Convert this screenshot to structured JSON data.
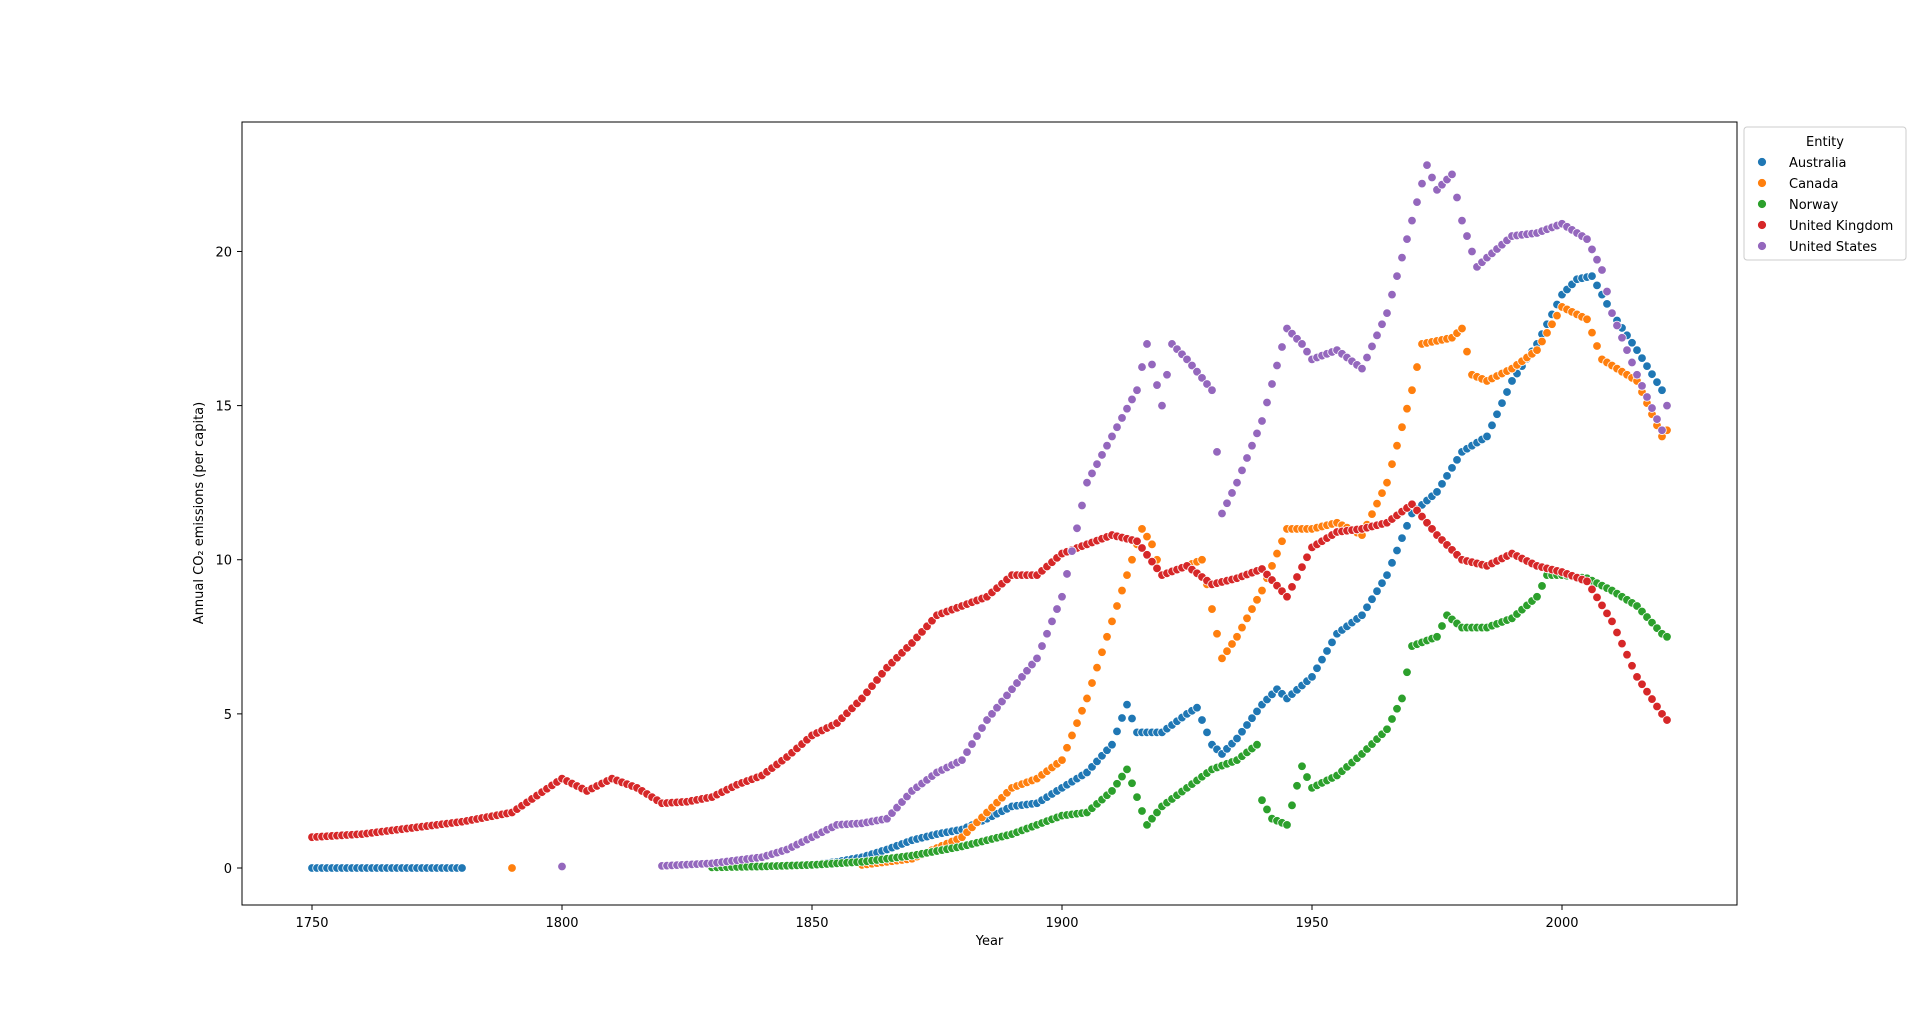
{
  "chart_data": {
    "type": "scatter",
    "title": "",
    "xlabel": "Year",
    "ylabel": "Annual CO₂ emissions (per capita)",
    "xlim": [
      1736,
      2035
    ],
    "ylim": [
      -1.2,
      24.2
    ],
    "x_ticks": [
      1750,
      1800,
      1850,
      1900,
      1950,
      2000
    ],
    "y_ticks": [
      0,
      5,
      10,
      15,
      20
    ],
    "grid": false,
    "legend": {
      "title": "Entity",
      "placement": "top-right-outside"
    },
    "series": [
      {
        "name": "Australia",
        "color": "#1f77b4",
        "anchors": [
          [
            1750,
            0
          ],
          [
            1760,
            0
          ],
          [
            1770,
            0
          ],
          [
            1780,
            0
          ],
          [
            1830,
            0.02
          ],
          [
            1840,
            0.05
          ],
          [
            1850,
            0.1
          ],
          [
            1855,
            0.2
          ],
          [
            1860,
            0.35
          ],
          [
            1865,
            0.6
          ],
          [
            1870,
            0.9
          ],
          [
            1875,
            1.1
          ],
          [
            1880,
            1.25
          ],
          [
            1885,
            1.6
          ],
          [
            1890,
            2.0
          ],
          [
            1895,
            2.1
          ],
          [
            1900,
            2.6
          ],
          [
            1905,
            3.1
          ],
          [
            1910,
            4.0
          ],
          [
            1913,
            5.3
          ],
          [
            1915,
            4.4
          ],
          [
            1920,
            4.4
          ],
          [
            1925,
            5.0
          ],
          [
            1927,
            5.2
          ],
          [
            1930,
            4.0
          ],
          [
            1932,
            3.7
          ],
          [
            1935,
            4.2
          ],
          [
            1940,
            5.3
          ],
          [
            1943,
            5.8
          ],
          [
            1945,
            5.5
          ],
          [
            1950,
            6.2
          ],
          [
            1955,
            7.6
          ],
          [
            1960,
            8.2
          ],
          [
            1965,
            9.5
          ],
          [
            1970,
            11.5
          ],
          [
            1975,
            12.2
          ],
          [
            1980,
            13.5
          ],
          [
            1985,
            14.0
          ],
          [
            1990,
            15.8
          ],
          [
            1995,
            17.0
          ],
          [
            2000,
            18.6
          ],
          [
            2003,
            19.1
          ],
          [
            2006,
            19.2
          ],
          [
            2010,
            18.0
          ],
          [
            2015,
            16.8
          ],
          [
            2020,
            15.5
          ]
        ]
      },
      {
        "name": "Canada",
        "color": "#ff7f0e",
        "anchors": [
          [
            1790,
            0
          ],
          [
            1830,
            0
          ],
          [
            1860,
            0.1
          ],
          [
            1870,
            0.3
          ],
          [
            1880,
            1.0
          ],
          [
            1885,
            1.8
          ],
          [
            1890,
            2.6
          ],
          [
            1895,
            2.9
          ],
          [
            1900,
            3.5
          ],
          [
            1905,
            5.5
          ],
          [
            1910,
            8.0
          ],
          [
            1913,
            9.5
          ],
          [
            1916,
            11.0
          ],
          [
            1918,
            10.5
          ],
          [
            1920,
            9.5
          ],
          [
            1925,
            9.8
          ],
          [
            1928,
            10.0
          ],
          [
            1932,
            6.8
          ],
          [
            1935,
            7.5
          ],
          [
            1940,
            9.0
          ],
          [
            1945,
            11.0
          ],
          [
            1950,
            11.0
          ],
          [
            1955,
            11.2
          ],
          [
            1960,
            10.8
          ],
          [
            1965,
            12.5
          ],
          [
            1970,
            15.5
          ],
          [
            1972,
            17.0
          ],
          [
            1978,
            17.2
          ],
          [
            1980,
            17.5
          ],
          [
            1982,
            16.0
          ],
          [
            1985,
            15.8
          ],
          [
            1990,
            16.2
          ],
          [
            1995,
            16.8
          ],
          [
            2000,
            18.2
          ],
          [
            2005,
            17.8
          ],
          [
            2008,
            16.5
          ],
          [
            2015,
            15.8
          ],
          [
            2020,
            14.0
          ],
          [
            2021,
            14.2
          ]
        ]
      },
      {
        "name": "Norway",
        "color": "#2ca02c",
        "anchors": [
          [
            1830,
            0.02
          ],
          [
            1840,
            0.05
          ],
          [
            1850,
            0.1
          ],
          [
            1860,
            0.2
          ],
          [
            1870,
            0.4
          ],
          [
            1880,
            0.7
          ],
          [
            1890,
            1.1
          ],
          [
            1900,
            1.7
          ],
          [
            1905,
            1.8
          ],
          [
            1910,
            2.5
          ],
          [
            1913,
            3.2
          ],
          [
            1917,
            1.4
          ],
          [
            1920,
            2.0
          ],
          [
            1925,
            2.6
          ],
          [
            1930,
            3.2
          ],
          [
            1935,
            3.5
          ],
          [
            1939,
            4.0
          ],
          [
            1940,
            2.2
          ],
          [
            1942,
            1.6
          ],
          [
            1945,
            1.4
          ],
          [
            1948,
            3.3
          ],
          [
            1950,
            2.6
          ],
          [
            1955,
            3.0
          ],
          [
            1960,
            3.7
          ],
          [
            1965,
            4.5
          ],
          [
            1968,
            5.5
          ],
          [
            1970,
            7.2
          ],
          [
            1975,
            7.5
          ],
          [
            1977,
            8.2
          ],
          [
            1980,
            7.8
          ],
          [
            1985,
            7.8
          ],
          [
            1990,
            8.1
          ],
          [
            1995,
            8.8
          ],
          [
            1997,
            9.5
          ],
          [
            2000,
            9.5
          ],
          [
            2005,
            9.4
          ],
          [
            2010,
            9.0
          ],
          [
            2015,
            8.5
          ],
          [
            2020,
            7.6
          ],
          [
            2021,
            7.5
          ]
        ]
      },
      {
        "name": "United Kingdom",
        "color": "#d62728",
        "anchors": [
          [
            1750,
            1.0
          ],
          [
            1760,
            1.1
          ],
          [
            1770,
            1.3
          ],
          [
            1780,
            1.5
          ],
          [
            1790,
            1.8
          ],
          [
            1800,
            2.9
          ],
          [
            1805,
            2.5
          ],
          [
            1810,
            2.9
          ],
          [
            1815,
            2.6
          ],
          [
            1820,
            2.1
          ],
          [
            1825,
            2.15
          ],
          [
            1830,
            2.3
          ],
          [
            1835,
            2.7
          ],
          [
            1840,
            3.0
          ],
          [
            1845,
            3.6
          ],
          [
            1850,
            4.3
          ],
          [
            1855,
            4.7
          ],
          [
            1860,
            5.5
          ],
          [
            1865,
            6.5
          ],
          [
            1870,
            7.3
          ],
          [
            1875,
            8.2
          ],
          [
            1880,
            8.5
          ],
          [
            1885,
            8.8
          ],
          [
            1890,
            9.5
          ],
          [
            1895,
            9.5
          ],
          [
            1900,
            10.2
          ],
          [
            1905,
            10.5
          ],
          [
            1910,
            10.8
          ],
          [
            1915,
            10.6
          ],
          [
            1920,
            9.5
          ],
          [
            1925,
            9.8
          ],
          [
            1930,
            9.2
          ],
          [
            1935,
            9.4
          ],
          [
            1940,
            9.7
          ],
          [
            1945,
            8.8
          ],
          [
            1950,
            10.4
          ],
          [
            1955,
            10.9
          ],
          [
            1960,
            11.0
          ],
          [
            1965,
            11.2
          ],
          [
            1970,
            11.8
          ],
          [
            1975,
            10.8
          ],
          [
            1980,
            10.0
          ],
          [
            1985,
            9.8
          ],
          [
            1990,
            10.2
          ],
          [
            1995,
            9.8
          ],
          [
            2000,
            9.6
          ],
          [
            2005,
            9.3
          ],
          [
            2010,
            8.0
          ],
          [
            2015,
            6.2
          ],
          [
            2020,
            5.0
          ],
          [
            2021,
            4.8
          ]
        ]
      },
      {
        "name": "United States",
        "color": "#9467bd",
        "anchors": [
          [
            1800,
            0.05
          ],
          [
            1820,
            0.07
          ],
          [
            1830,
            0.15
          ],
          [
            1840,
            0.35
          ],
          [
            1845,
            0.6
          ],
          [
            1850,
            1.0
          ],
          [
            1855,
            1.4
          ],
          [
            1860,
            1.45
          ],
          [
            1865,
            1.6
          ],
          [
            1870,
            2.5
          ],
          [
            1875,
            3.1
          ],
          [
            1880,
            3.5
          ],
          [
            1885,
            4.8
          ],
          [
            1890,
            5.8
          ],
          [
            1895,
            6.8
          ],
          [
            1900,
            8.8
          ],
          [
            1905,
            12.5
          ],
          [
            1910,
            14.0
          ],
          [
            1915,
            15.5
          ],
          [
            1917,
            17.0
          ],
          [
            1920,
            15.0
          ],
          [
            1922,
            17.0
          ],
          [
            1925,
            16.5
          ],
          [
            1930,
            15.5
          ],
          [
            1932,
            11.5
          ],
          [
            1935,
            12.5
          ],
          [
            1940,
            14.5
          ],
          [
            1945,
            17.5
          ],
          [
            1948,
            17.0
          ],
          [
            1950,
            16.5
          ],
          [
            1955,
            16.8
          ],
          [
            1960,
            16.2
          ],
          [
            1965,
            18.0
          ],
          [
            1970,
            21.0
          ],
          [
            1973,
            22.8
          ],
          [
            1975,
            22.0
          ],
          [
            1978,
            22.5
          ],
          [
            1980,
            21.0
          ],
          [
            1983,
            19.5
          ],
          [
            1985,
            19.8
          ],
          [
            1990,
            20.5
          ],
          [
            1995,
            20.6
          ],
          [
            2000,
            20.9
          ],
          [
            2005,
            20.4
          ],
          [
            2008,
            19.4
          ],
          [
            2010,
            18.0
          ],
          [
            2015,
            16.0
          ],
          [
            2020,
            14.2
          ],
          [
            2021,
            15.0
          ]
        ]
      }
    ]
  }
}
